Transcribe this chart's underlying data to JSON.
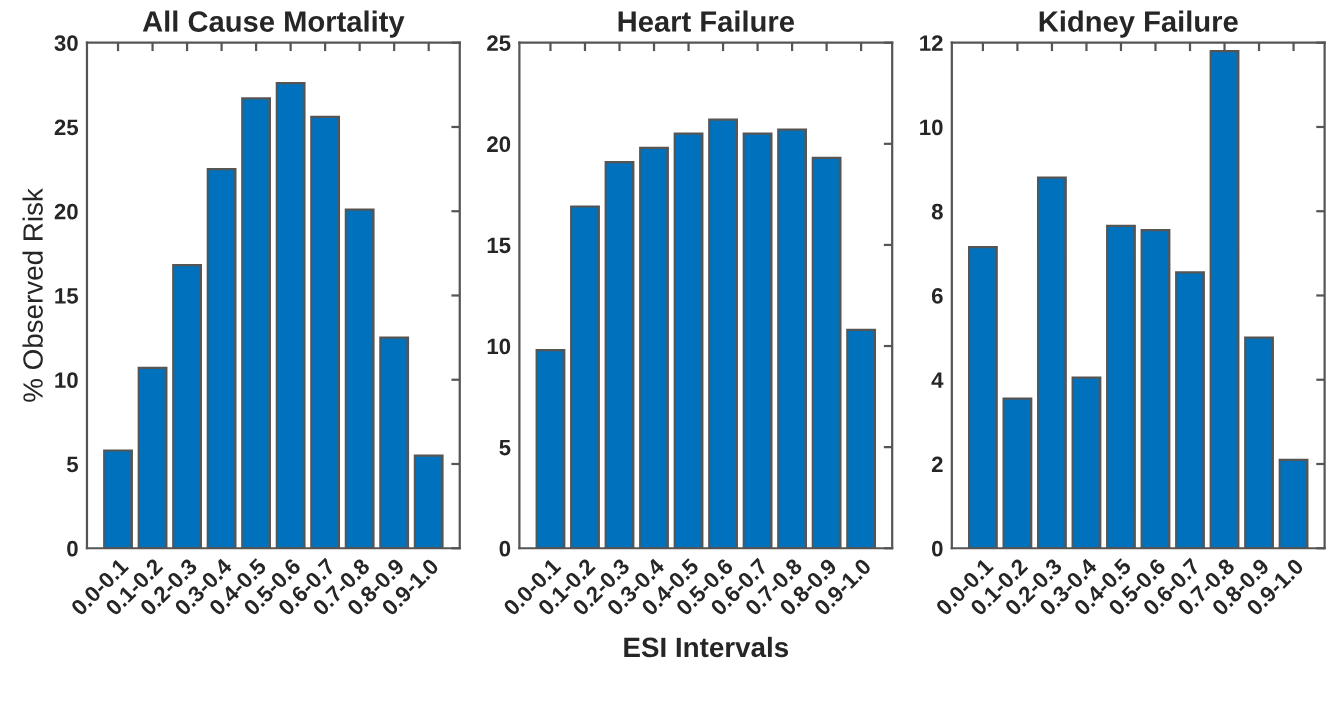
{
  "chart_data": [
    {
      "type": "bar",
      "title": "All Cause Mortality",
      "ylabel": "% Observed Risk",
      "categories": [
        "0.0-0.1",
        "0.1-0.2",
        "0.2-0.3",
        "0.3-0.4",
        "0.4-0.5",
        "0.5-0.6",
        "0.6-0.7",
        "0.7-0.8",
        "0.8-0.9",
        "0.9-1.0"
      ],
      "color": "#0072bd",
      "values": [
        5.8,
        10.7,
        16.8,
        22.5,
        26.7,
        27.6,
        25.6,
        20.1,
        12.5,
        5.5
      ],
      "ylim": [
        0,
        30
      ],
      "yticks": [
        0,
        5,
        10,
        15,
        20,
        25,
        30
      ],
      "grid": false
    },
    {
      "type": "bar",
      "title": "Heart Failure",
      "xlabel": "ESI Intervals",
      "categories": [
        "0.0-0.1",
        "0.1-0.2",
        "0.2-0.3",
        "0.3-0.4",
        "0.4-0.5",
        "0.5-0.6",
        "0.6-0.7",
        "0.7-0.8",
        "0.8-0.9",
        "0.9-1.0"
      ],
      "color": "#0072bd",
      "values": [
        9.8,
        16.9,
        19.1,
        19.8,
        20.5,
        21.2,
        20.5,
        20.7,
        19.3,
        10.8
      ],
      "ylim": [
        0,
        25
      ],
      "yticks": [
        0,
        5,
        10,
        15,
        20,
        25
      ],
      "grid": false
    },
    {
      "type": "bar",
      "title": "Kidney Failure",
      "categories": [
        "0.0-0.1",
        "0.1-0.2",
        "0.2-0.3",
        "0.3-0.4",
        "0.4-0.5",
        "0.5-0.6",
        "0.6-0.7",
        "0.7-0.8",
        "0.8-0.9",
        "0.9-1.0"
      ],
      "color": "#0072bd",
      "values": [
        7.15,
        3.55,
        8.8,
        4.05,
        7.65,
        7.55,
        6.55,
        11.8,
        5.0,
        2.1
      ],
      "ylim": [
        0,
        12
      ],
      "yticks": [
        0,
        2,
        4,
        6,
        8,
        10,
        12
      ],
      "grid": false
    }
  ]
}
